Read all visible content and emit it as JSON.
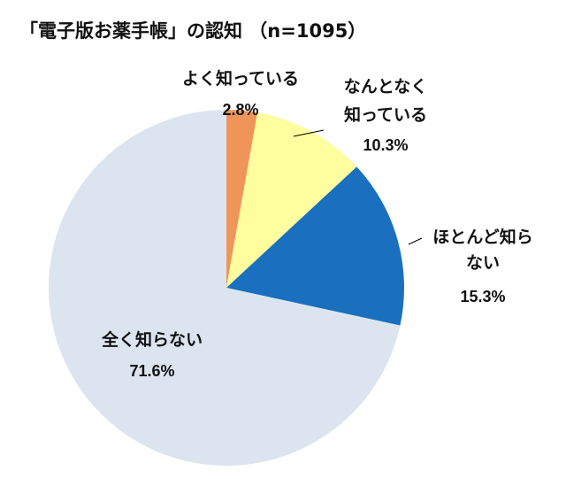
{
  "chart_data": {
    "type": "pie",
    "title": "「電子版お薬手帳」の認知 （n=1095）",
    "start_angle": "top",
    "direction": "clockwise",
    "slices": [
      {
        "label_lines": [
          "よく知っている"
        ],
        "pct_text": "2.8%",
        "value": 2.8,
        "color": "#f0955a"
      },
      {
        "label_lines": [
          "なんとなく",
          "知っている"
        ],
        "pct_text": "10.3%",
        "value": 10.3,
        "color": "#fefe9e"
      },
      {
        "label_lines": [
          "ほとんど知ら",
          "ない"
        ],
        "pct_text": "15.3%",
        "value": 15.3,
        "color": "#1a6fbe"
      },
      {
        "label_lines": [
          "全く知らない"
        ],
        "pct_text": "71.6%",
        "value": 71.6,
        "color": "#dce5ef"
      }
    ]
  }
}
